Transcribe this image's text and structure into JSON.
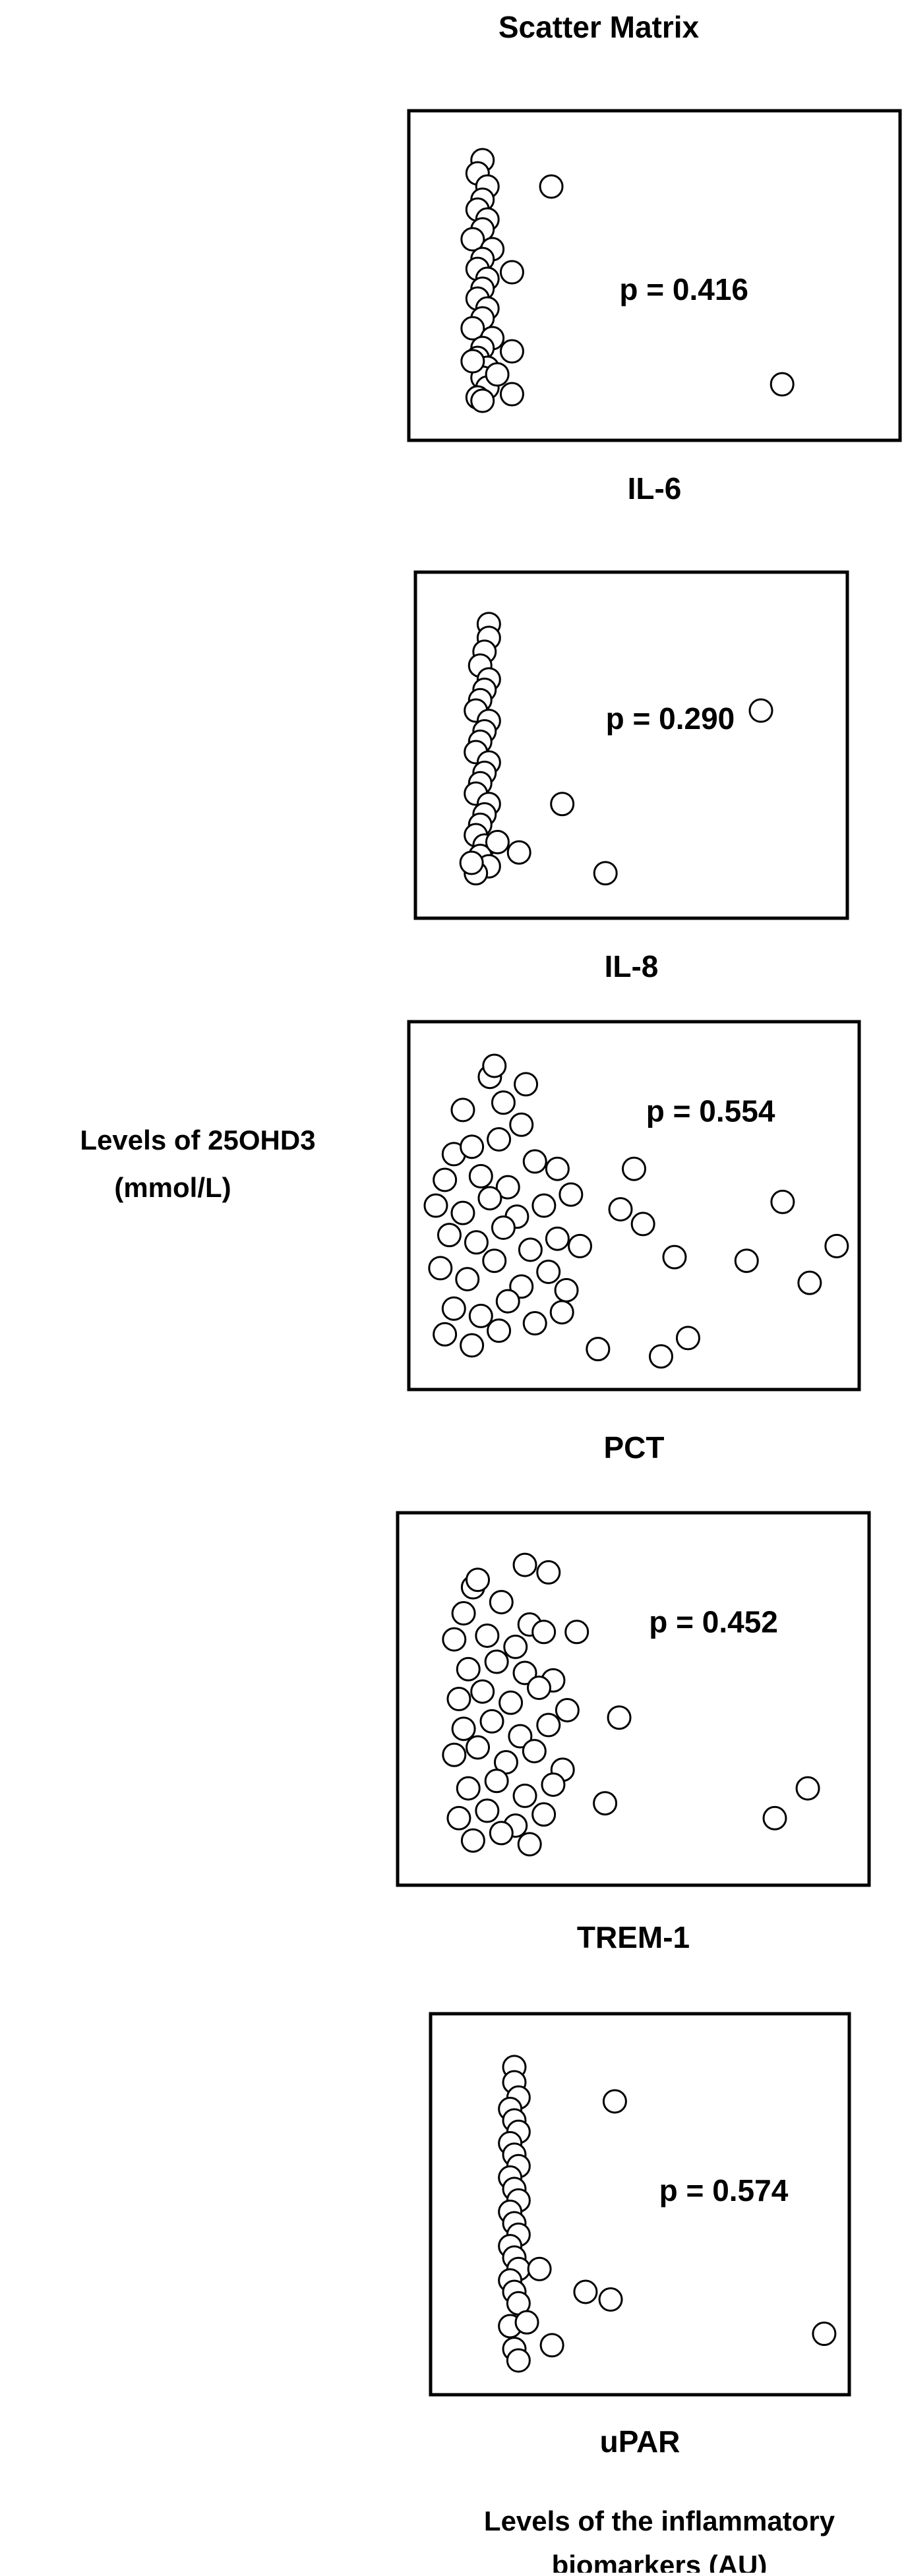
{
  "title": "Scatter Matrix",
  "y_label": [
    "Levels of 25OHD3",
    "(mmol/L)"
  ],
  "x_label": [
    "Levels of the inflammatory",
    "biomarkers (AU)"
  ],
  "chart_data": [
    {
      "type": "scatter",
      "x_label": "IL-6",
      "annotation": "p = 0.416",
      "marker_fill": "#ffffff",
      "marker_edge": "#000000",
      "xlim": [
        0,
        100
      ],
      "ylim": [
        0,
        100
      ],
      "x": [
        15,
        14,
        16,
        15,
        14,
        16,
        15,
        13,
        17,
        15,
        14,
        16,
        15,
        14,
        16,
        15,
        13,
        17,
        15,
        14,
        16,
        15,
        16,
        14,
        15,
        29,
        76,
        21,
        21,
        21,
        18,
        13
      ],
      "y": [
        85,
        81,
        77,
        73,
        70,
        67,
        64,
        61,
        58,
        55,
        52,
        49,
        46,
        43,
        40,
        37,
        34,
        31,
        28,
        25,
        22,
        19,
        16,
        13,
        12,
        77,
        17,
        27,
        51,
        14,
        20,
        24
      ]
    },
    {
      "type": "scatter",
      "x_label": "IL-8",
      "annotation": "p = 0.290",
      "marker_fill": "#ffffff",
      "marker_edge": "#000000",
      "xlim": [
        0,
        100
      ],
      "ylim": [
        0,
        100
      ],
      "x": [
        17,
        17,
        16,
        15,
        17,
        16,
        15,
        14,
        17,
        16,
        15,
        14,
        17,
        16,
        15,
        14,
        17,
        16,
        15,
        14,
        16,
        15,
        17,
        14,
        80,
        34,
        44,
        24,
        19,
        13
      ],
      "y": [
        85,
        81,
        77,
        73,
        69,
        66,
        63,
        60,
        57,
        54,
        51,
        48,
        45,
        42,
        39,
        36,
        33,
        30,
        27,
        24,
        21,
        18,
        15,
        13,
        60,
        33,
        13,
        19,
        22,
        16
      ]
    },
    {
      "type": "scatter",
      "x_label": "PCT",
      "annotation": "p = 0.554",
      "marker_fill": "#ffffff",
      "marker_edge": "#000000",
      "xlim": [
        0,
        100
      ],
      "ylim": [
        0,
        100
      ],
      "x": [
        18,
        19,
        26,
        12,
        21,
        25,
        10,
        14,
        20,
        28,
        8,
        16,
        22,
        33,
        6,
        12,
        18,
        24,
        30,
        36,
        9,
        15,
        21,
        27,
        33,
        38,
        7,
        13,
        19,
        25,
        31,
        35,
        10,
        16,
        22,
        28,
        34,
        8,
        14,
        20,
        50,
        52,
        59,
        75,
        83,
        89,
        95,
        56,
        62,
        42,
        47
      ],
      "y": [
        85,
        88,
        83,
        76,
        78,
        72,
        64,
        66,
        68,
        62,
        57,
        58,
        55,
        60,
        50,
        48,
        52,
        47,
        50,
        53,
        42,
        40,
        44,
        38,
        41,
        39,
        33,
        30,
        35,
        28,
        32,
        27,
        22,
        20,
        24,
        18,
        21,
        15,
        12,
        16,
        60,
        45,
        36,
        35,
        51,
        29,
        39,
        9,
        14,
        11,
        49
      ]
    },
    {
      "type": "scatter",
      "x_label": "TREM-1",
      "annotation": "p = 0.452",
      "marker_fill": "#ffffff",
      "marker_edge": "#000000",
      "xlim": [
        0,
        100
      ],
      "ylim": [
        0,
        100
      ],
      "x": [
        16,
        17,
        14,
        22,
        28,
        12,
        19,
        25,
        31,
        15,
        21,
        27,
        33,
        13,
        18,
        24,
        30,
        36,
        14,
        20,
        26,
        32,
        12,
        17,
        23,
        29,
        35,
        15,
        21,
        27,
        33,
        13,
        19,
        25,
        31,
        16,
        22,
        28,
        47,
        44,
        80,
        87,
        38,
        27,
        32
      ],
      "y": [
        80,
        82,
        73,
        76,
        70,
        66,
        67,
        64,
        68,
        58,
        60,
        57,
        55,
        50,
        52,
        49,
        53,
        47,
        42,
        44,
        40,
        43,
        35,
        37,
        33,
        36,
        31,
        26,
        28,
        24,
        27,
        18,
        20,
        16,
        19,
        12,
        14,
        11,
        45,
        22,
        18,
        26,
        68,
        86,
        84
      ]
    },
    {
      "type": "scatter",
      "x_label": "uPAR",
      "annotation": "p = 0.574",
      "marker_fill": "#ffffff",
      "marker_edge": "#000000",
      "xlim": [
        0,
        100
      ],
      "ylim": [
        0,
        100
      ],
      "x": [
        20,
        20,
        21,
        19,
        20,
        21,
        19,
        20,
        21,
        19,
        20,
        21,
        19,
        20,
        21,
        19,
        20,
        21,
        19,
        20,
        21,
        19,
        20,
        21,
        44,
        26,
        37,
        43,
        94,
        29,
        23
      ],
      "y": [
        86,
        82,
        78,
        75,
        72,
        69,
        66,
        63,
        60,
        57,
        54,
        51,
        48,
        45,
        42,
        39,
        36,
        33,
        30,
        27,
        24,
        18,
        12,
        9,
        77,
        33,
        27,
        25,
        16,
        13,
        19
      ]
    }
  ]
}
